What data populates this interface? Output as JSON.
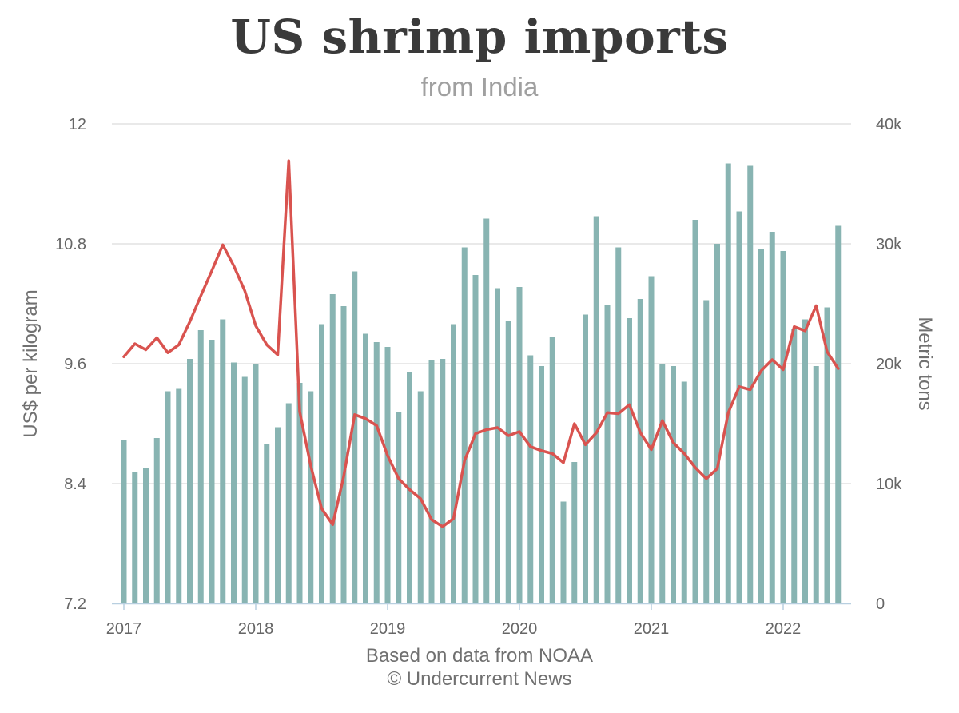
{
  "chart_data": {
    "type": "bar+line",
    "title": "US shrimp imports",
    "subtitle": "from India",
    "ylabel": "US$ per kilogram",
    "y2label": "Metric tons",
    "ylim": [
      7.2,
      12
    ],
    "y2lim": [
      0,
      40000
    ],
    "yticks": [
      "7.2",
      "8.4",
      "9.6",
      "10.8",
      "12"
    ],
    "y2ticks": [
      "0",
      "10k",
      "20k",
      "30k",
      "40k"
    ],
    "xticks": [
      "2017",
      "2018",
      "2019",
      "2020",
      "2021",
      "2022"
    ],
    "x_start": "2017-01",
    "grid": true,
    "colors": {
      "bars": "#88b4b2",
      "line": "#d9534f",
      "grid": "#e2e2e2"
    },
    "series": [
      {
        "kind": "bar",
        "axis": "right",
        "values": [
          13600,
          11000,
          11300,
          13800,
          17700,
          17900,
          20400,
          22800,
          22000,
          23700,
          20100,
          18900,
          20000,
          13300,
          14700,
          16700,
          18400,
          17700,
          23300,
          25800,
          24800,
          27700,
          22500,
          21800,
          21400,
          16000,
          19300,
          17700,
          20300,
          20400,
          23300,
          29700,
          27400,
          32100,
          26300,
          23600,
          26400,
          20700,
          19800,
          22200,
          8500,
          11800,
          24100,
          32300,
          24900,
          29700,
          23800,
          25400,
          27300,
          20000,
          19800,
          18500,
          32000,
          25300,
          30000,
          36700,
          32700,
          36500,
          29600,
          31000,
          29400,
          22900,
          23700,
          19800,
          24700,
          31500
        ]
      },
      {
        "kind": "line",
        "axis": "left",
        "values": [
          9.67,
          9.8,
          9.74,
          9.86,
          9.71,
          9.79,
          10.02,
          10.28,
          10.53,
          10.79,
          10.58,
          10.33,
          9.98,
          9.79,
          9.69,
          11.63,
          9.12,
          8.58,
          8.15,
          7.99,
          8.47,
          9.09,
          9.05,
          8.98,
          8.68,
          8.45,
          8.34,
          8.25,
          8.04,
          7.97,
          8.05,
          8.63,
          8.9,
          8.94,
          8.96,
          8.88,
          8.92,
          8.77,
          8.73,
          8.7,
          8.61,
          9.0,
          8.79,
          8.91,
          9.11,
          9.1,
          9.19,
          8.91,
          8.74,
          9.03,
          8.81,
          8.7,
          8.56,
          8.45,
          8.55,
          9.11,
          9.37,
          9.34,
          9.53,
          9.64,
          9.54,
          9.97,
          9.93,
          10.18,
          9.72,
          9.55
        ]
      }
    ]
  },
  "footer": {
    "source_line1": "Based on data from NOAA",
    "source_line2": "© Undercurrent News"
  }
}
